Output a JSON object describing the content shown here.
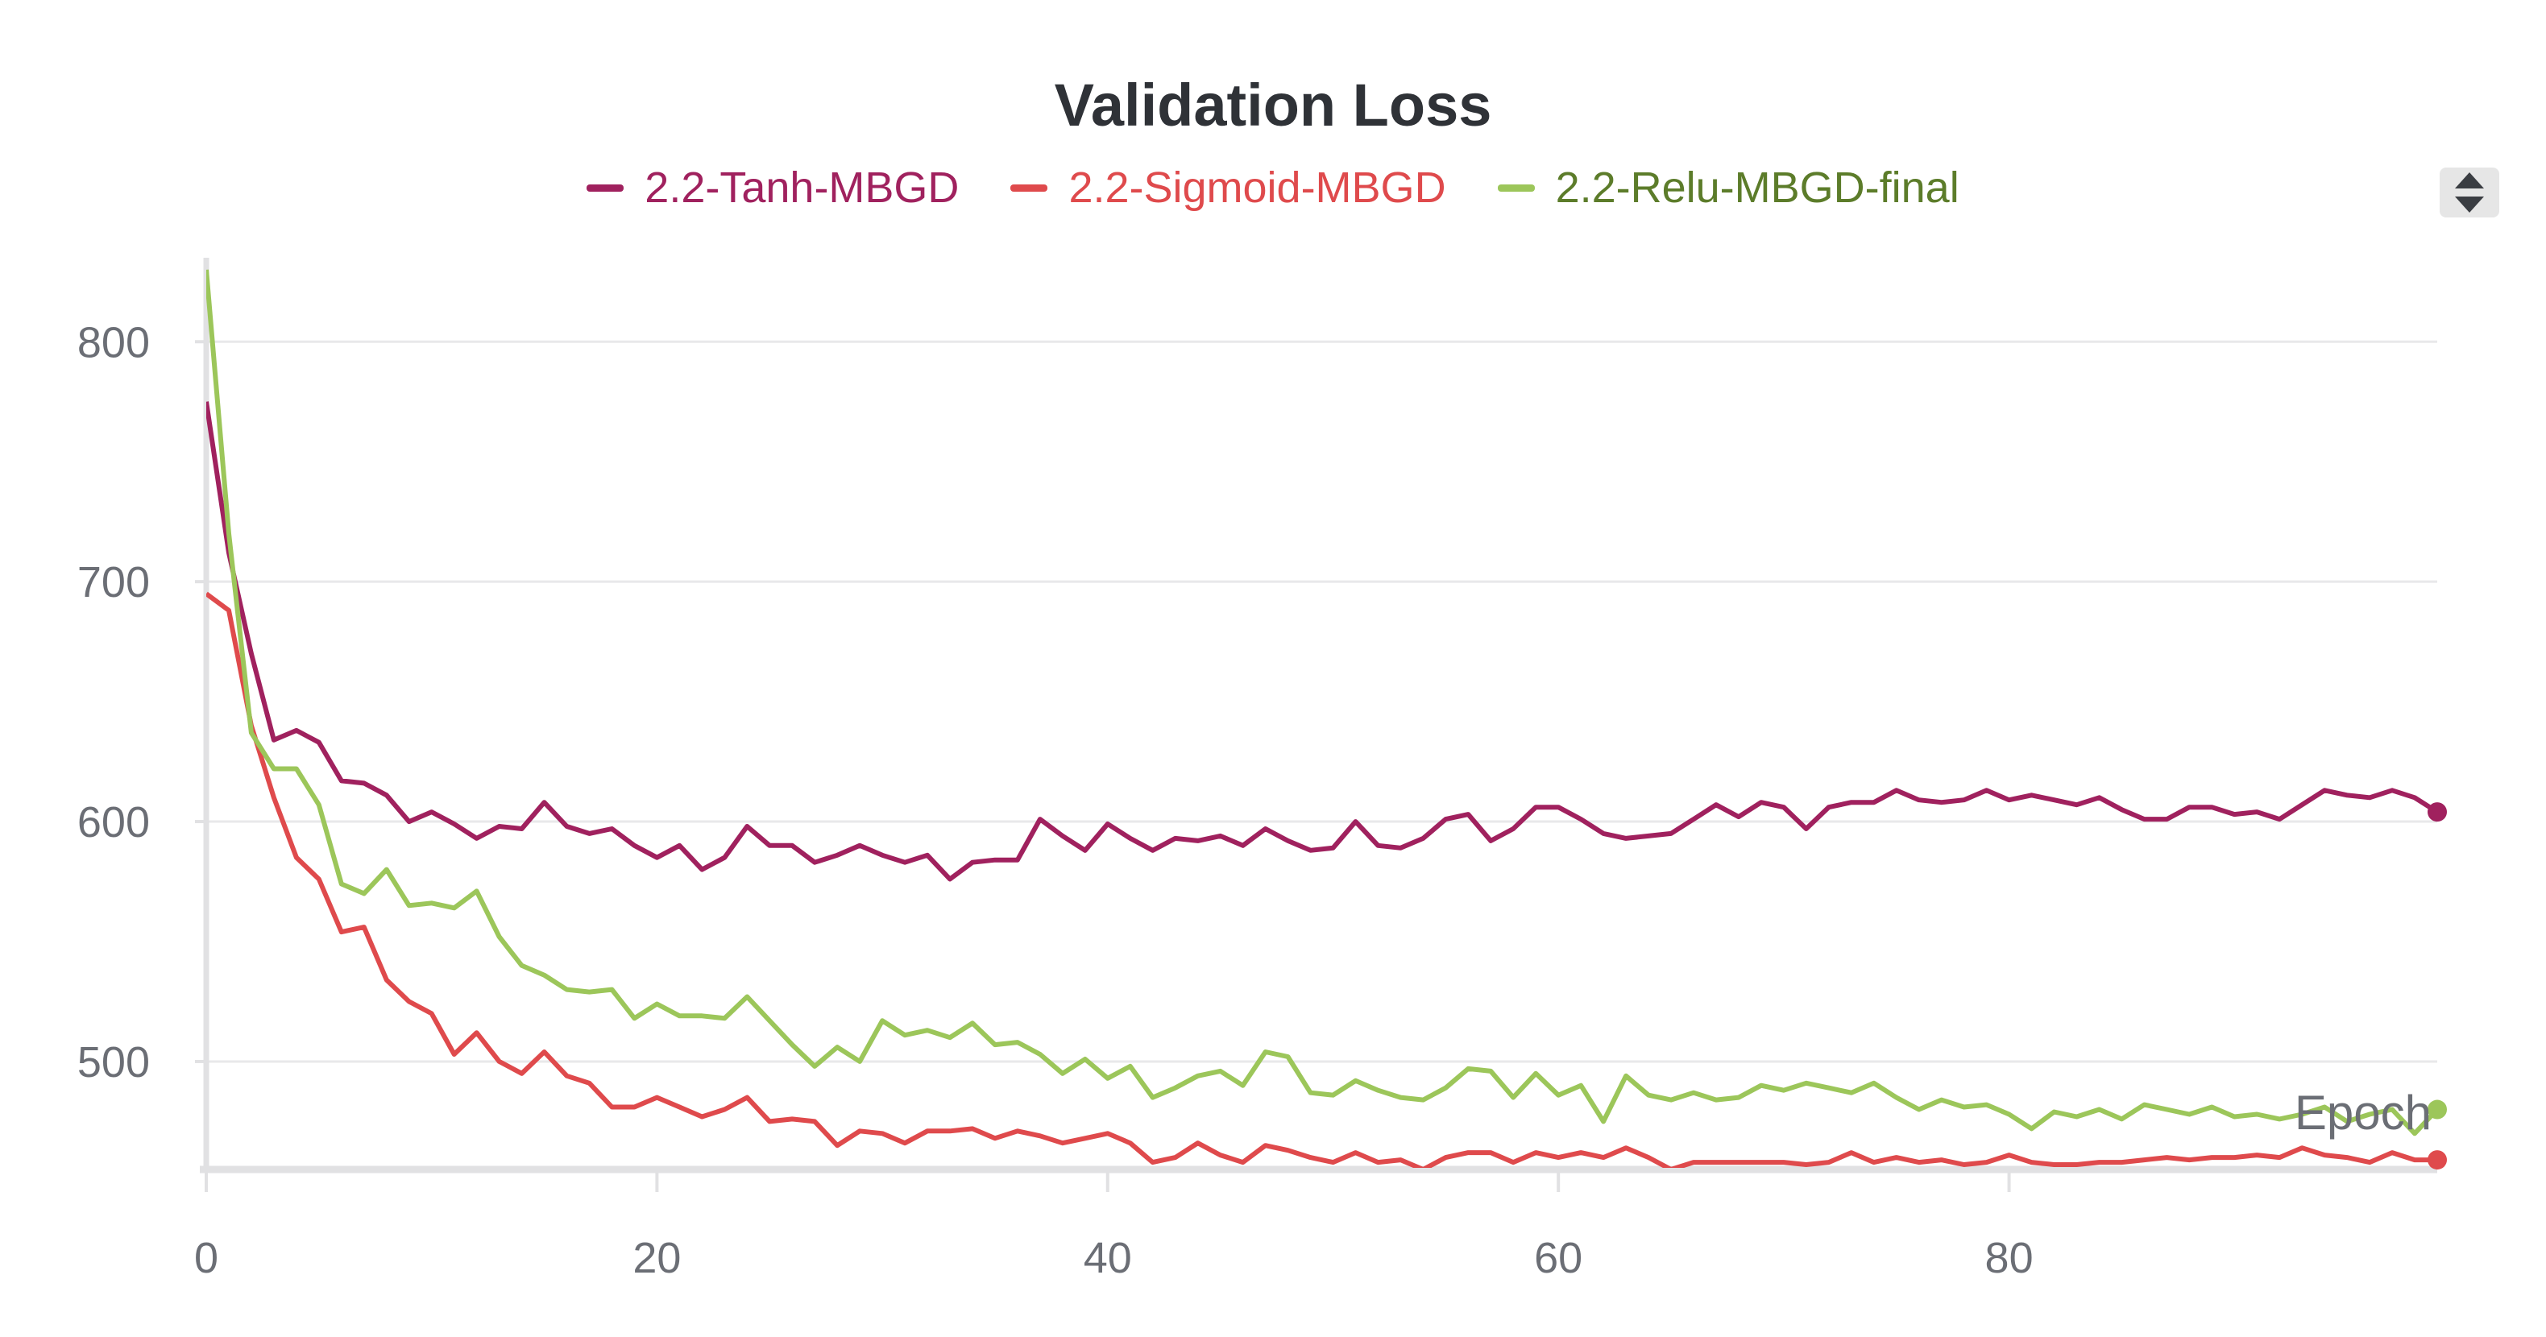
{
  "chart_data": {
    "type": "line",
    "title": "Validation Loss",
    "xlabel": "Epoch",
    "ylabel": "",
    "xlim": [
      0,
      99
    ],
    "ylim": [
      455,
      835
    ],
    "xticks": [
      0,
      20,
      40,
      60,
      80
    ],
    "yticks": [
      500,
      600,
      700,
      800
    ],
    "grid": true,
    "legend_position": "top-center",
    "series": [
      {
        "name": "2.2-Tanh-MBGD",
        "color": "#a0215e",
        "values": [
          775,
          712,
          670,
          634,
          638,
          633,
          617,
          616,
          611,
          600,
          604,
          599,
          593,
          598,
          597,
          608,
          598,
          595,
          597,
          590,
          585,
          590,
          580,
          585,
          598,
          590,
          590,
          583,
          586,
          590,
          586,
          583,
          586,
          576,
          583,
          584,
          584,
          601,
          594,
          588,
          599,
          593,
          588,
          593,
          592,
          594,
          590,
          597,
          592,
          588,
          589,
          600,
          590,
          589,
          593,
          601,
          603,
          592,
          597,
          606,
          606,
          601,
          595,
          593,
          594,
          595,
          601,
          607,
          602,
          608,
          606,
          597,
          606,
          608,
          608,
          613,
          609,
          608,
          609,
          613,
          609,
          611,
          609,
          607,
          610,
          605,
          601,
          601,
          606,
          606,
          603,
          604,
          601,
          607,
          613,
          611,
          610,
          613,
          610,
          604
        ]
      },
      {
        "name": "2.2-Sigmoid-MBGD",
        "color": "#df4a4c",
        "values": [
          695,
          688,
          640,
          610,
          585,
          576,
          554,
          556,
          534,
          525,
          520,
          503,
          512,
          500,
          495,
          504,
          494,
          491,
          481,
          481,
          485,
          481,
          477,
          480,
          485,
          475,
          476,
          475,
          465,
          471,
          470,
          466,
          471,
          471,
          472,
          468,
          471,
          469,
          466,
          468,
          470,
          466,
          458,
          460,
          466,
          461,
          458,
          465,
          463,
          460,
          458,
          462,
          458,
          459,
          455,
          460,
          462,
          462,
          458,
          462,
          460,
          462,
          460,
          464,
          460,
          455,
          458,
          458,
          458,
          458,
          458,
          457,
          458,
          462,
          458,
          460,
          458,
          459,
          457,
          458,
          461,
          458,
          457,
          457,
          458,
          458,
          459,
          460,
          459,
          460,
          460,
          461,
          460,
          464,
          461,
          460,
          458,
          462,
          459,
          459
        ]
      },
      {
        "name": "2.2-Relu-MBGD-final",
        "color": "#9cc65a",
        "values": [
          830,
          720,
          637,
          622,
          622,
          607,
          574,
          570,
          580,
          565,
          566,
          564,
          571,
          552,
          540,
          536,
          530,
          529,
          530,
          518,
          524,
          519,
          519,
          518,
          527,
          517,
          507,
          498,
          506,
          500,
          517,
          511,
          513,
          510,
          516,
          507,
          508,
          503,
          495,
          501,
          493,
          498,
          485,
          489,
          494,
          496,
          490,
          504,
          502,
          487,
          486,
          492,
          488,
          485,
          484,
          489,
          497,
          496,
          485,
          495,
          486,
          490,
          475,
          494,
          486,
          484,
          487,
          484,
          485,
          490,
          488,
          491,
          489,
          487,
          491,
          485,
          480,
          484,
          481,
          482,
          478,
          472,
          479,
          477,
          480,
          476,
          482,
          480,
          478,
          481,
          477,
          478,
          476,
          478,
          481,
          475,
          478,
          480,
          470,
          480
        ]
      }
    ]
  }
}
